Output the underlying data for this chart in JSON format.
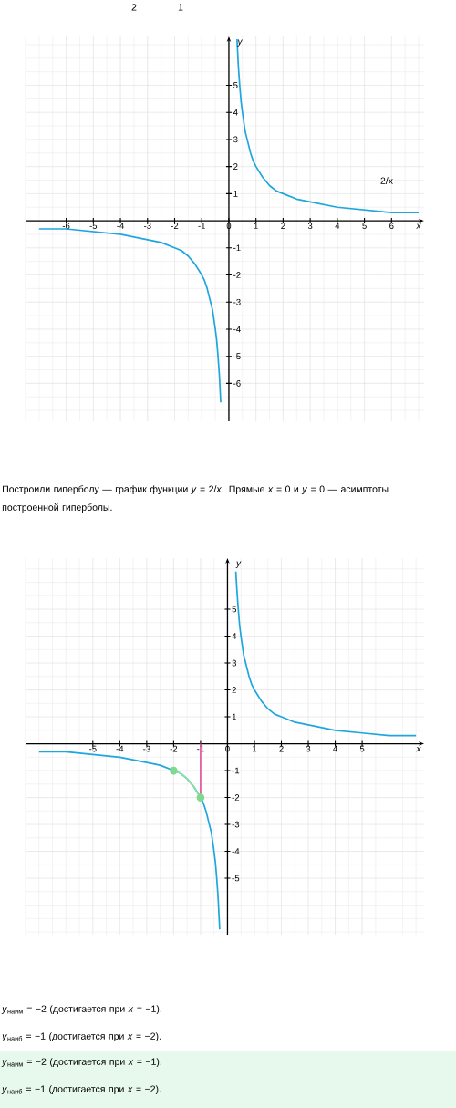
{
  "chart_data": [
    {
      "type": "line",
      "xlabel": "x",
      "ylabel": "y",
      "xlim": [
        -7.5,
        7.2
      ],
      "ylim": [
        -7.4,
        6.8
      ],
      "xticks": [
        -6,
        -5,
        -4,
        -3,
        -2,
        -1,
        0,
        1,
        2,
        3,
        4,
        5,
        6
      ],
      "yticks": [
        -6,
        -5,
        -4,
        -3,
        -2,
        -1,
        1,
        2,
        3,
        4,
        5
      ],
      "grid": true,
      "series": [
        {
          "color": "#1fa6df",
          "x": [
            -7,
            -6,
            -5,
            -4,
            -3,
            -2.5,
            -2,
            -1.75,
            -1.5,
            -1.25,
            -1,
            -0.9,
            -0.8,
            -0.7,
            -0.6,
            -0.5,
            -0.45,
            -0.4,
            -0.35,
            -0.3,
            null,
            0.3,
            0.35,
            0.4,
            0.45,
            0.5,
            0.6,
            0.7,
            0.8,
            0.9,
            1,
            1.25,
            1.5,
            1.75,
            2,
            2.5,
            3,
            4,
            5,
            6,
            7
          ],
          "values": [
            -0.3,
            -0.3,
            -0.4,
            -0.5,
            -0.7,
            -0.8,
            -1,
            -1.1,
            -1.3,
            -1.6,
            -2,
            -2.2,
            -2.5,
            -2.9,
            -3.3,
            -4,
            -4.4,
            -5,
            -5.7,
            -6.7,
            null,
            6.7,
            5.7,
            5,
            4.4,
            4,
            3.3,
            2.9,
            2.5,
            2.2,
            2,
            1.6,
            1.3,
            1.1,
            1,
            0.8,
            0.7,
            0.5,
            0.4,
            0.3,
            0.3
          ]
        }
      ],
      "annotations": [
        "2",
        "1",
        "2/x",
        "Построили гиперболу — график функции *y* = 2/*x*. Прямые *x* = 0 и *y* = 0 — асимптоты построенной гиперболы."
      ]
    },
    {
      "type": "line",
      "xlabel": "x",
      "ylabel": "y",
      "xlim": [
        -7.5,
        7.3
      ],
      "ylim": [
        -7.1,
        6.9
      ],
      "xticks": [
        -5,
        -4,
        -3,
        -2,
        -1,
        0,
        1,
        2,
        3,
        4,
        5
      ],
      "yticks": [
        -5,
        -4,
        -3,
        -2,
        -1,
        1,
        2,
        3,
        4,
        5
      ],
      "grid": true,
      "series": [
        {
          "color": "#1fa6df",
          "x": [
            -7,
            -6,
            -5,
            -4,
            -3,
            -2.5,
            -2,
            -1.75,
            -1.5,
            -1.25,
            -1,
            -0.9,
            -0.8,
            -0.7,
            -0.6,
            -0.5,
            -0.45,
            -0.4,
            -0.35,
            -0.29,
            null,
            0.31,
            0.35,
            0.4,
            0.45,
            0.5,
            0.6,
            0.7,
            0.8,
            0.9,
            1,
            1.25,
            1.5,
            1.75,
            2,
            2.5,
            3,
            4,
            5,
            6,
            7
          ],
          "values": [
            -0.3,
            -0.3,
            -0.4,
            -0.5,
            -0.7,
            -0.8,
            -1,
            -1.1,
            -1.3,
            -1.6,
            -2,
            -2.2,
            -2.5,
            -2.9,
            -3.3,
            -4,
            -4.4,
            -5,
            -5.7,
            -6.9,
            null,
            6.4,
            5.7,
            5,
            4.4,
            4,
            3.3,
            2.9,
            2.5,
            2.2,
            2,
            1.6,
            1.3,
            1.1,
            1,
            0.8,
            0.7,
            0.5,
            0.4,
            0.3,
            0.3
          ]
        },
        {
          "color": "#8fe3a0",
          "x": [
            -2,
            -1.75,
            -1.5,
            -1.25,
            -1
          ],
          "values": [
            -1,
            -1.1,
            -1.3,
            -1.6,
            -2
          ]
        },
        {
          "type": "scatter",
          "color": "#7fd98f",
          "x": [
            -2,
            -1
          ],
          "values": [
            -1,
            -2
          ]
        },
        {
          "color": "#e2579d",
          "x": [
            -1,
            -1
          ],
          "values": [
            0,
            -2
          ]
        }
      ],
      "annotations": [
        "*y*$_{наим}$ = −2 (достигается при *x* = −1).",
        "*y*$_{наиб}$ = −1 (достигается при *x* = −2).",
        "*y*$_{наим}$ = −2 (достигается при *x* = −1).",
        "*y*$_{наиб}$ = −1 (достигается при *x* = −2)."
      ]
    }
  ]
}
